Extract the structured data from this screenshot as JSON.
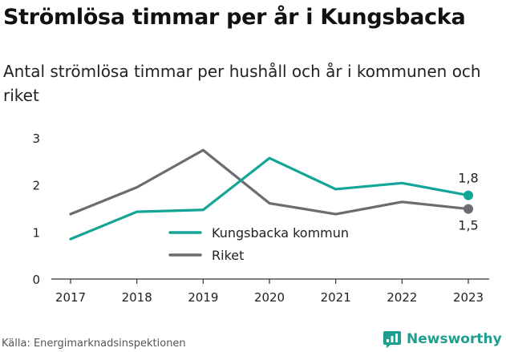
{
  "title": "Strömlösa timmar per år i Kungsbacka",
  "subtitle": "Antal strömlösa timmar per hushåll och år i kommunen och riket",
  "source": "Källa: Energimarknadsinspektionen",
  "brand": {
    "name": "Newsworthy",
    "color": "#1e9e8f"
  },
  "chart_data": {
    "type": "line",
    "x": [
      "2017",
      "2018",
      "2019",
      "2020",
      "2021",
      "2022",
      "2023"
    ],
    "ylim": [
      0,
      3
    ],
    "yticks": [
      "0",
      "1",
      "2",
      "3"
    ],
    "grid": false,
    "legend": "center",
    "series": [
      {
        "name": "Kungsbacka kommun",
        "color": "#13a596",
        "values": [
          0.85,
          1.43,
          1.47,
          2.57,
          1.91,
          2.04,
          1.78
        ],
        "end_label": "1,8"
      },
      {
        "name": "Riket",
        "color": "#6b6b72",
        "values": [
          1.38,
          1.95,
          2.74,
          1.61,
          1.38,
          1.64,
          1.49
        ],
        "end_label": "1,5"
      }
    ]
  }
}
